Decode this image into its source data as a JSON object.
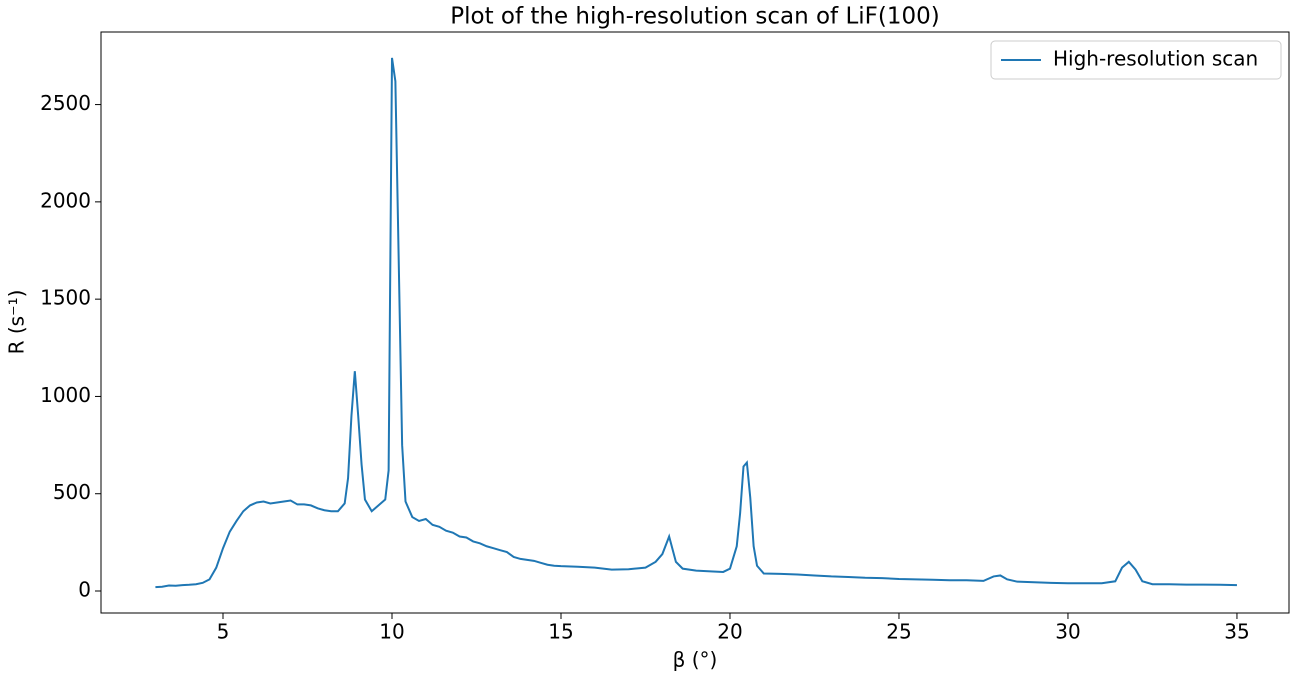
{
  "chart_data": {
    "type": "line",
    "title": "Plot of the high-resolution scan of LiF(100)",
    "xlabel": "β (°)",
    "ylabel": "R (s⁻¹)",
    "x": [
      3.0,
      3.2,
      3.4,
      3.6,
      3.8,
      4.0,
      4.2,
      4.4,
      4.6,
      4.8,
      5.0,
      5.2,
      5.4,
      5.6,
      5.8,
      6.0,
      6.2,
      6.4,
      6.6,
      6.8,
      7.0,
      7.2,
      7.4,
      7.6,
      7.8,
      8.0,
      8.2,
      8.4,
      8.6,
      8.7,
      8.8,
      8.9,
      9.0,
      9.1,
      9.2,
      9.4,
      9.6,
      9.8,
      9.9,
      10.0,
      10.1,
      10.3,
      10.4,
      10.6,
      10.8,
      11.0,
      11.2,
      11.4,
      11.6,
      11.8,
      12.0,
      12.2,
      12.4,
      12.6,
      12.8,
      13.0,
      13.2,
      13.4,
      13.6,
      13.8,
      14.0,
      14.2,
      14.4,
      14.6,
      14.8,
      15.0,
      15.5,
      16.0,
      16.5,
      17.0,
      17.5,
      17.8,
      18.0,
      18.2,
      18.4,
      18.6,
      19.0,
      19.5,
      19.8,
      20.0,
      20.2,
      20.3,
      20.4,
      20.5,
      20.6,
      20.7,
      20.8,
      21.0,
      21.5,
      22.0,
      22.5,
      23.0,
      23.5,
      24.0,
      24.5,
      25.0,
      25.5,
      26.0,
      26.5,
      27.0,
      27.5,
      27.8,
      28.0,
      28.2,
      28.5,
      29.0,
      29.5,
      30.0,
      30.5,
      31.0,
      31.4,
      31.6,
      31.8,
      32.0,
      32.2,
      32.5,
      33.0,
      33.5,
      34.0,
      34.5,
      35.0
    ],
    "series": [
      {
        "name": "High-resolution scan",
        "color": "#1f77b4",
        "values": [
          20,
          22,
          28,
          27,
          30,
          32,
          35,
          42,
          60,
          120,
          220,
          305,
          360,
          410,
          440,
          455,
          460,
          450,
          455,
          460,
          465,
          445,
          445,
          440,
          425,
          415,
          410,
          410,
          450,
          580,
          900,
          1130,
          900,
          650,
          470,
          410,
          440,
          470,
          620,
          2740,
          2620,
          750,
          460,
          380,
          360,
          370,
          340,
          330,
          310,
          300,
          280,
          275,
          255,
          245,
          230,
          220,
          210,
          200,
          175,
          165,
          160,
          155,
          145,
          135,
          130,
          128,
          125,
          120,
          110,
          112,
          120,
          150,
          190,
          280,
          150,
          115,
          105,
          100,
          98,
          115,
          230,
          400,
          640,
          660,
          480,
          230,
          130,
          90,
          88,
          85,
          80,
          75,
          72,
          68,
          66,
          62,
          60,
          58,
          55,
          55,
          52,
          75,
          80,
          60,
          48,
          45,
          42,
          40,
          40,
          40,
          50,
          120,
          150,
          110,
          50,
          35,
          35,
          33,
          33,
          32,
          30
        ]
      }
    ],
    "xlim": [
      1.39,
      36.54
    ],
    "ylim": [
      -113,
      2873
    ],
    "xticks": [
      5,
      10,
      15,
      20,
      25,
      30,
      35
    ],
    "yticks": [
      0,
      500,
      1000,
      1500,
      2000,
      2500
    ],
    "grid": false,
    "legend": "upper right"
  }
}
